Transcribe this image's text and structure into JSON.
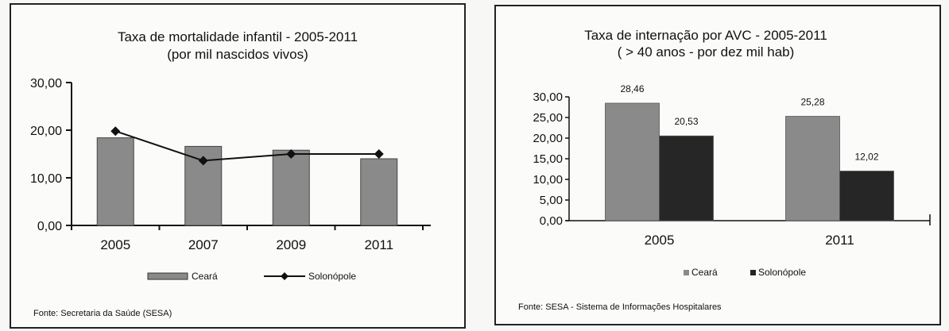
{
  "chart_data": [
    {
      "type": "bar",
      "title": "Taxa de mortalidade infantil - 2005-2011",
      "subtitle": "(por mil nascidos vivos)",
      "categories": [
        "2005",
        "2007",
        "2009",
        "2011"
      ],
      "y_tick_labels": [
        "0,00",
        "10,00",
        "20,00",
        "30,00"
      ],
      "ylim": [
        0,
        30
      ],
      "series": [
        {
          "name": "Ceará",
          "kind": "bar",
          "color": "#8a8a8a",
          "values": [
            18.4,
            16.6,
            15.8,
            14.0
          ]
        },
        {
          "name": "Solonópole",
          "kind": "line",
          "color": "#111111",
          "values": [
            19.8,
            13.6,
            15.0,
            15.0
          ]
        }
      ],
      "legend_position": "bottom",
      "source": "Fonte: Secretaria da Saúde (SESA)"
    },
    {
      "type": "bar",
      "title": "Taxa de internação por AVC - 2005-2011",
      "subtitle": "( > 40 anos - por dez mil hab)",
      "categories": [
        "2005",
        "2011"
      ],
      "y_tick_labels": [
        "0,00",
        "5,00",
        "10,00",
        "15,00",
        "20,00",
        "25,00",
        "30,00"
      ],
      "ylim": [
        0,
        30
      ],
      "series": [
        {
          "name": "Ceará",
          "kind": "bar",
          "color": "#8a8a8a",
          "values": [
            28.46,
            25.28
          ],
          "labels": [
            "28,46",
            "25,28"
          ]
        },
        {
          "name": "Solonópole",
          "kind": "bar",
          "color": "#262626",
          "values": [
            20.53,
            12.02
          ],
          "labels": [
            "20,53",
            "12,02"
          ]
        }
      ],
      "legend_position": "bottom",
      "source": "Fonte: SESA - Sistema de Informações Hospitalares"
    }
  ]
}
